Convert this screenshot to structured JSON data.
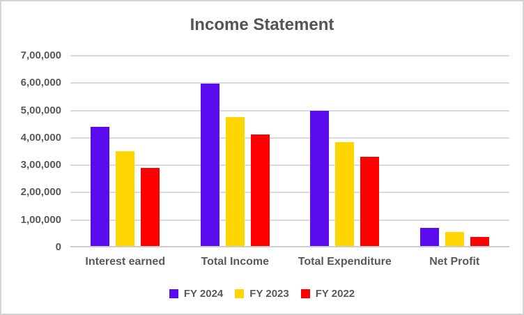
{
  "chart_data": {
    "type": "bar",
    "title": "Income Statement",
    "categories": [
      "Interest earned",
      "Total Income",
      "Total Expenditure",
      "Net Profit"
    ],
    "series": [
      {
        "name": "FY 2024",
        "color": "#5A0CEE",
        "values": [
          435000,
          592000,
          495000,
          65000
        ]
      },
      {
        "name": "FY 2023",
        "color": "#FFD500",
        "values": [
          346000,
          471000,
          380000,
          52000
        ]
      },
      {
        "name": "FY 2022",
        "color": "#FF0000",
        "values": [
          286000,
          406000,
          326000,
          34000
        ]
      }
    ],
    "ylim": [
      0,
      700000
    ],
    "yticks": [
      {
        "value": 0,
        "label": "0"
      },
      {
        "value": 100000,
        "label": "1,00,000"
      },
      {
        "value": 200000,
        "label": "2,00,000"
      },
      {
        "value": 300000,
        "label": "3,00,000"
      },
      {
        "value": 400000,
        "label": "4,00,000"
      },
      {
        "value": 500000,
        "label": "5,00,000"
      },
      {
        "value": 600000,
        "label": "6,00,000"
      },
      {
        "value": 700000,
        "label": "7,00,000"
      }
    ],
    "grid": true,
    "legend_position": "bottom"
  },
  "colors": {
    "text": "#595959",
    "grid": "#dbdbdb",
    "axis": "#cdcdcd",
    "frame_border": "#d4d4d4",
    "background": "#ffffff"
  }
}
